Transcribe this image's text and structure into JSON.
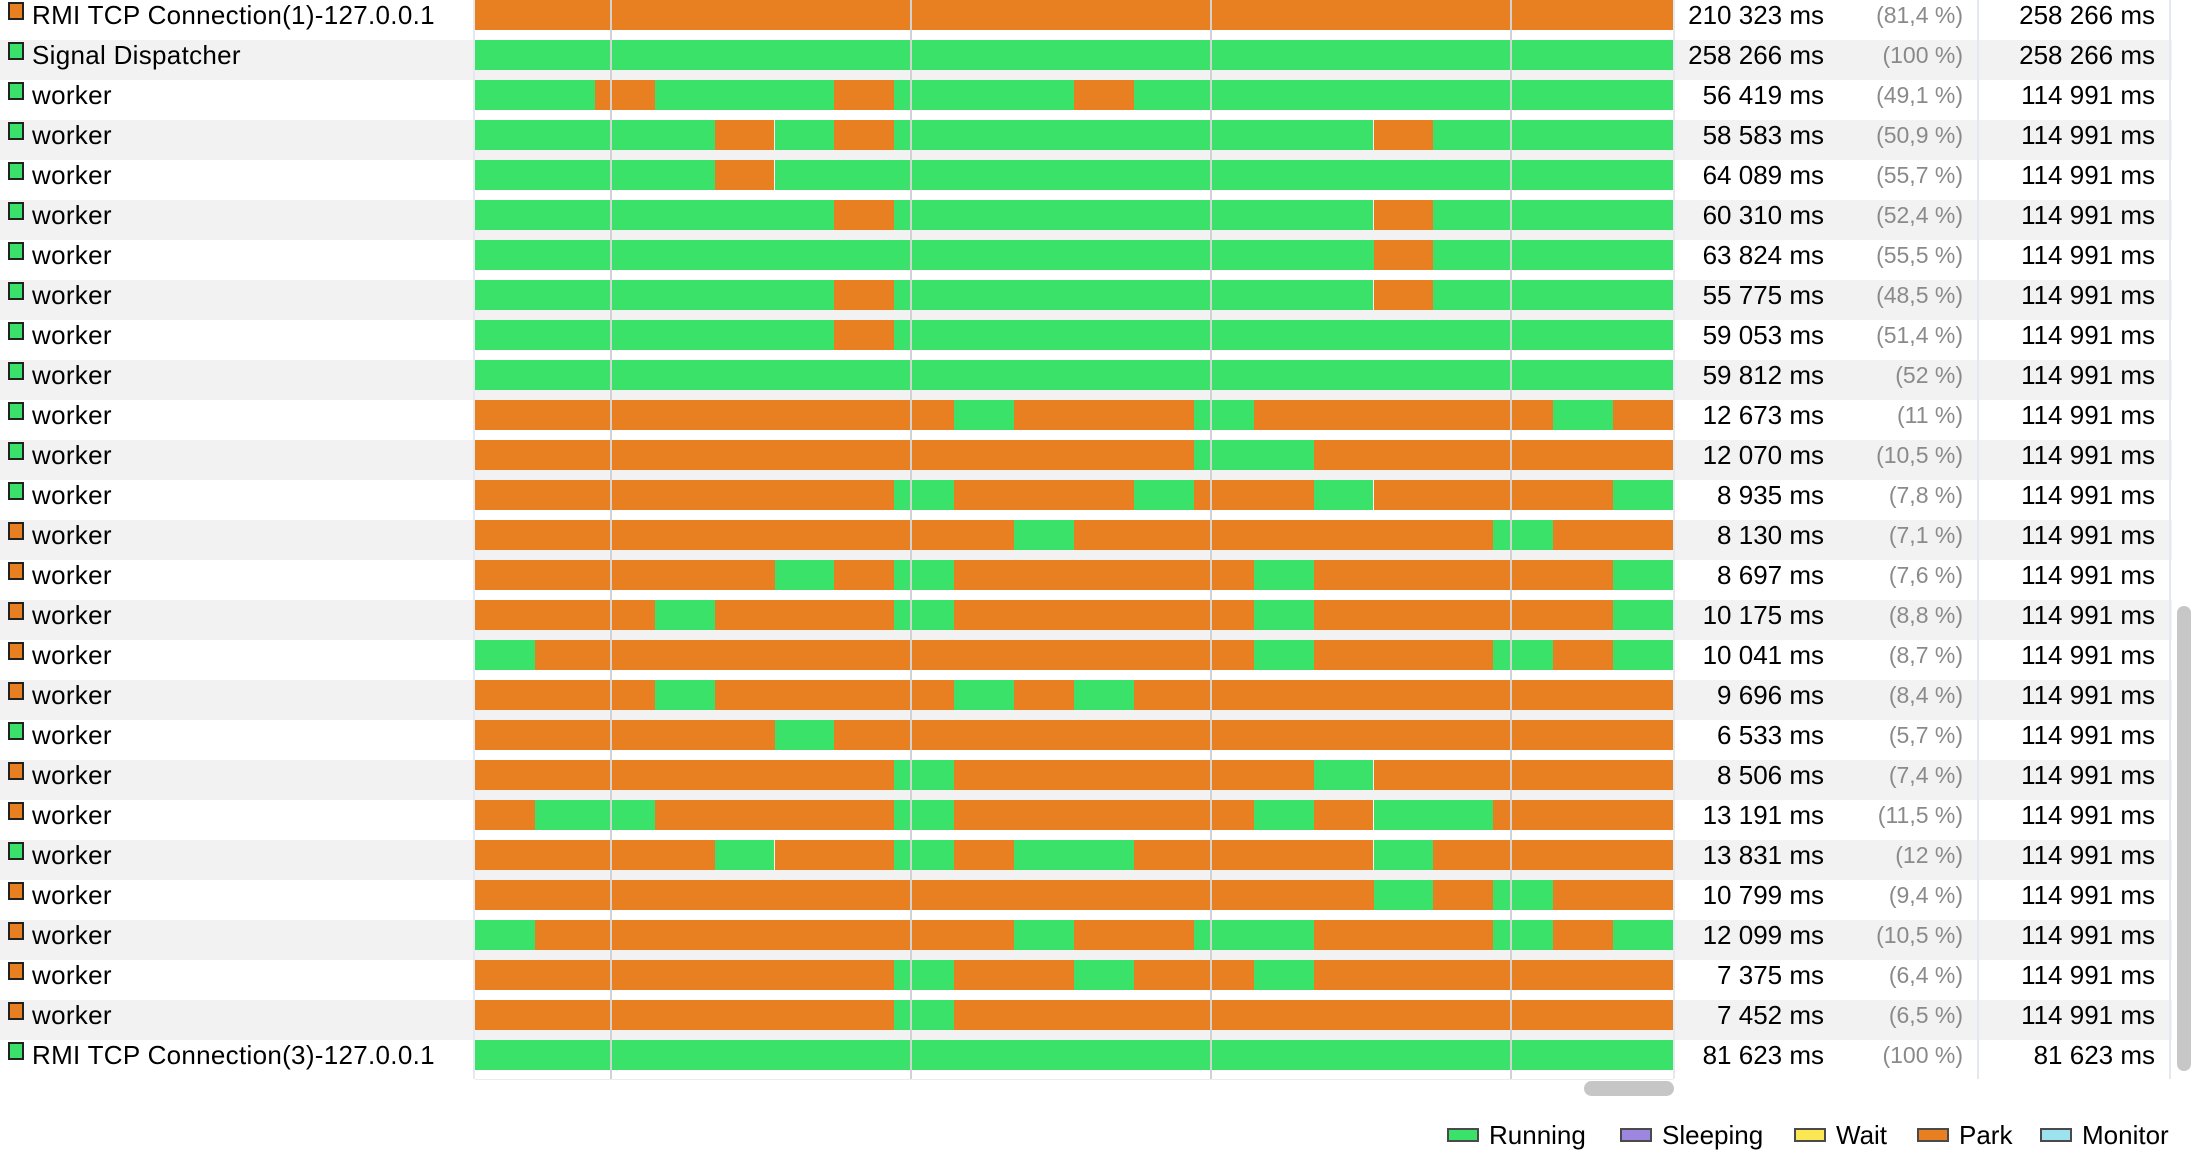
{
  "colors": {
    "running": "#3ae26a",
    "park": "#e88022",
    "sleeping": "#9d86e0",
    "wait": "#fbe754",
    "monitor": "#9ce2ef"
  },
  "timeline": {
    "segment_boundaries": [
      0,
      1,
      2,
      3,
      4,
      5,
      6,
      7,
      8,
      9,
      10,
      11,
      12,
      13,
      14,
      15,
      16,
      17,
      18,
      19,
      20
    ]
  },
  "threads": [
    {
      "name": "RMI TCP Connection(1)-127.0.0.1",
      "state_icon": "park",
      "states": "PPPPPPPPPPPPPPPPPPPP",
      "time": "210 323 ms",
      "pct": "(81,4 %)",
      "total": "258 266 ms"
    },
    {
      "name": "Signal Dispatcher",
      "state_icon": "running",
      "states": "RRRRRRRRRRRRRRRRRRRR",
      "time": "258 266 ms",
      "pct": "(100 %)",
      "total": "258 266 ms"
    },
    {
      "name": "worker",
      "state_icon": "running",
      "states": "RRPRRRPRRRPRRRRRRRRR",
      "time": "56 419 ms",
      "pct": "(49,1 %)",
      "total": "114 991 ms"
    },
    {
      "name": "worker",
      "state_icon": "running",
      "states": "RRRRPRPRRRRRRRRPRRRR",
      "time": "58 583 ms",
      "pct": "(50,9 %)",
      "total": "114 991 ms"
    },
    {
      "name": "worker",
      "state_icon": "running",
      "states": "RRRRPRRRRRRRRRRRRRRR",
      "time": "64 089 ms",
      "pct": "(55,7 %)",
      "total": "114 991 ms"
    },
    {
      "name": "worker",
      "state_icon": "running",
      "states": "RRRRRRPRRRRRRRRPRRRR",
      "time": "60 310 ms",
      "pct": "(52,4 %)",
      "total": "114 991 ms"
    },
    {
      "name": "worker",
      "state_icon": "running",
      "states": "RRRRRRRRRRRRRRRPRRRR",
      "time": "63 824 ms",
      "pct": "(55,5 %)",
      "total": "114 991 ms"
    },
    {
      "name": "worker",
      "state_icon": "running",
      "states": "RRRRRRPRRRRRRRRPRRRR",
      "time": "55 775 ms",
      "pct": "(48,5 %)",
      "total": "114 991 ms"
    },
    {
      "name": "worker",
      "state_icon": "running",
      "states": "RRRRRRPRRRRRRRRRRRRR",
      "time": "59 053 ms",
      "pct": "(51,4 %)",
      "total": "114 991 ms"
    },
    {
      "name": "worker",
      "state_icon": "running",
      "states": "RRRRRRRRRRRRRRRRRRRR",
      "time": "59 812 ms",
      "pct": "(52 %)",
      "total": "114 991 ms"
    },
    {
      "name": "worker",
      "state_icon": "running",
      "states": "PPPPPPPPRPPPRPPPPPRP",
      "time": "12 673 ms",
      "pct": "(11 %)",
      "total": "114 991 ms"
    },
    {
      "name": "worker",
      "state_icon": "running",
      "states": "PPPPPPPPPPPPRRPPPPPP",
      "time": "12 070 ms",
      "pct": "(10,5 %)",
      "total": "114 991 ms"
    },
    {
      "name": "worker",
      "state_icon": "running",
      "states": "PPPPPPPRPPPRPPRPPPPR",
      "time": "8 935 ms",
      "pct": "(7,8 %)",
      "total": "114 991 ms"
    },
    {
      "name": "worker",
      "state_icon": "park",
      "states": "PPPPPPPPPRPPPPPPPRPP",
      "time": "8 130 ms",
      "pct": "(7,1 %)",
      "total": "114 991 ms"
    },
    {
      "name": "worker",
      "state_icon": "park",
      "states": "PPPPPRPRPPPPPRPPPPPR",
      "time": "8 697 ms",
      "pct": "(7,6 %)",
      "total": "114 991 ms"
    },
    {
      "name": "worker",
      "state_icon": "park",
      "states": "PPPRPPPRPPPPPRPPPPPR",
      "time": "10 175 ms",
      "pct": "(8,8 %)",
      "total": "114 991 ms"
    },
    {
      "name": "worker",
      "state_icon": "park",
      "states": "RPPPPPPPPPPPPRPPPRPR",
      "time": "10 041 ms",
      "pct": "(8,7 %)",
      "total": "114 991 ms"
    },
    {
      "name": "worker",
      "state_icon": "park",
      "states": "PPPRPPPPRPRPPPPPPPPP",
      "time": "9 696 ms",
      "pct": "(8,4 %)",
      "total": "114 991 ms"
    },
    {
      "name": "worker",
      "state_icon": "running",
      "states": "PPPPPRPPPPPPPPPPPPPP",
      "time": "6 533 ms",
      "pct": "(5,7 %)",
      "total": "114 991 ms"
    },
    {
      "name": "worker",
      "state_icon": "park",
      "states": "PPPPPPPRPPPPPPRPPPPP",
      "time": "8 506 ms",
      "pct": "(7,4 %)",
      "total": "114 991 ms"
    },
    {
      "name": "worker",
      "state_icon": "park",
      "states": "PRRPPPPRPPPPPRPRRPPP",
      "time": "13 191 ms",
      "pct": "(11,5 %)",
      "total": "114 991 ms"
    },
    {
      "name": "worker",
      "state_icon": "running",
      "states": "PPPPRPPRPRRPPPPRPPPP",
      "time": "13 831 ms",
      "pct": "(12 %)",
      "total": "114 991 ms"
    },
    {
      "name": "worker",
      "state_icon": "park",
      "states": "PPPPPPPPPPPPPPPRPRPP",
      "time": "10 799 ms",
      "pct": "(9,4 %)",
      "total": "114 991 ms"
    },
    {
      "name": "worker",
      "state_icon": "park",
      "states": "RPPPPPPPPRPPRRPPPRPR",
      "time": "12 099 ms",
      "pct": "(10,5 %)",
      "total": "114 991 ms"
    },
    {
      "name": "worker",
      "state_icon": "park",
      "states": "PPPPPPPRPPRPPRPPPPPP",
      "time": "7 375 ms",
      "pct": "(6,4 %)",
      "total": "114 991 ms"
    },
    {
      "name": "worker",
      "state_icon": "park",
      "states": "PPPPPPPRPPPPPPPPPPPP",
      "time": "7 452 ms",
      "pct": "(6,5 %)",
      "total": "114 991 ms"
    },
    {
      "name": "RMI TCP Connection(3)-127.0.0.1",
      "state_icon": "running",
      "states": "RRRRRRRRRRRRRRRRRRRR",
      "time": "81 623 ms",
      "pct": "(100 %)",
      "total": "81 623 ms"
    }
  ],
  "legend": [
    {
      "label": "Running",
      "color": "#3ae26a"
    },
    {
      "label": "Sleeping",
      "color": "#9d86e0"
    },
    {
      "label": "Wait",
      "color": "#fbe754"
    },
    {
      "label": "Park",
      "color": "#e88022"
    },
    {
      "label": "Monitor",
      "color": "#9ce2ef"
    }
  ]
}
